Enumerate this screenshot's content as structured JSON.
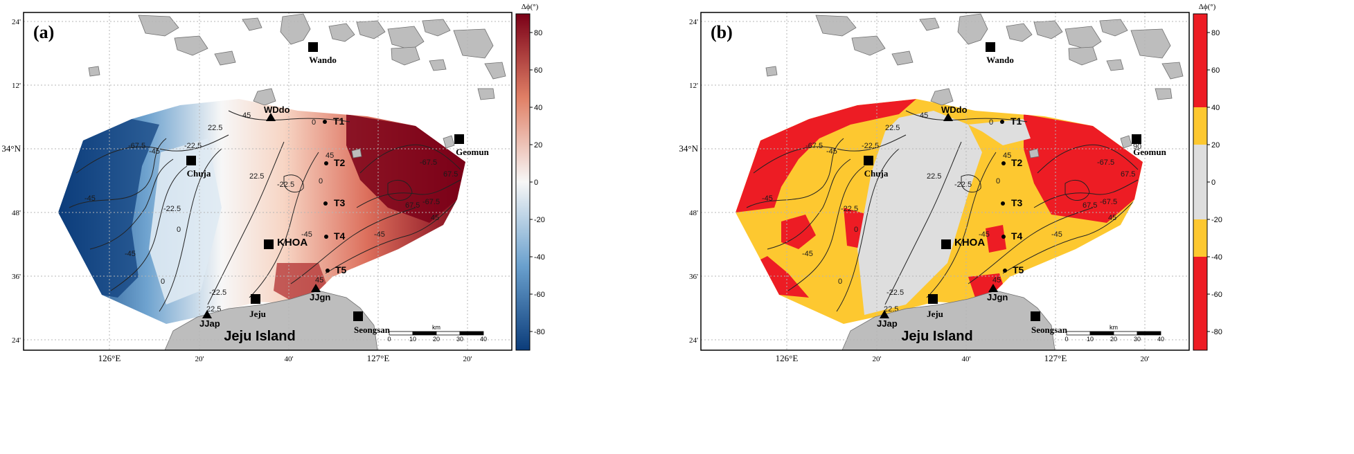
{
  "colors": {
    "land": "#bdbdbd",
    "coast": "#6e6e6e",
    "frame": "#000000",
    "grid": "#b5b5b5",
    "contour": "#222222",
    "red": "#ed1c24",
    "yellow": "#fdc830",
    "gray": "#dedede",
    "div_low": "#0b3c7a",
    "div_mid": "#f7f7f7",
    "div_high": "#7a0017"
  },
  "axes": {
    "lat_labels": [
      "24'",
      "12'",
      "34°N",
      "48'",
      "36'",
      "24'"
    ],
    "lon_labels": [
      "126°E",
      "20'",
      "40'",
      "127°E",
      "20'"
    ]
  },
  "colorbar": {
    "title": "Δϕ(°)",
    "ticks": [
      80,
      60,
      40,
      20,
      0,
      -20,
      -40,
      -60,
      -80
    ]
  },
  "places": {
    "wando": "Wando",
    "geomun": "Geomun",
    "chuja": "Chuja",
    "khoa": "KHOA",
    "jeju": "Jeju",
    "seongsan": "Seongsan",
    "island": "Jeju Island",
    "wdo": "WDdo",
    "jjgn": "JJgn",
    "jjap": "JJap",
    "t1": "T1",
    "t2": "T2",
    "t3": "T3",
    "t4": "T4",
    "t5": "T5"
  },
  "scalebar": {
    "unit": "km",
    "ticks": [
      "0",
      "10",
      "20",
      "30",
      "40"
    ]
  },
  "contour_labels": [
    "-67.5",
    "-45",
    "-22.5",
    "0",
    "22.5",
    "45",
    "67.5",
    "90"
  ],
  "panels": [
    {
      "id": "a",
      "label": "(a)",
      "style": "continuous"
    },
    {
      "id": "b",
      "label": "(b)",
      "style": "classified"
    }
  ]
}
